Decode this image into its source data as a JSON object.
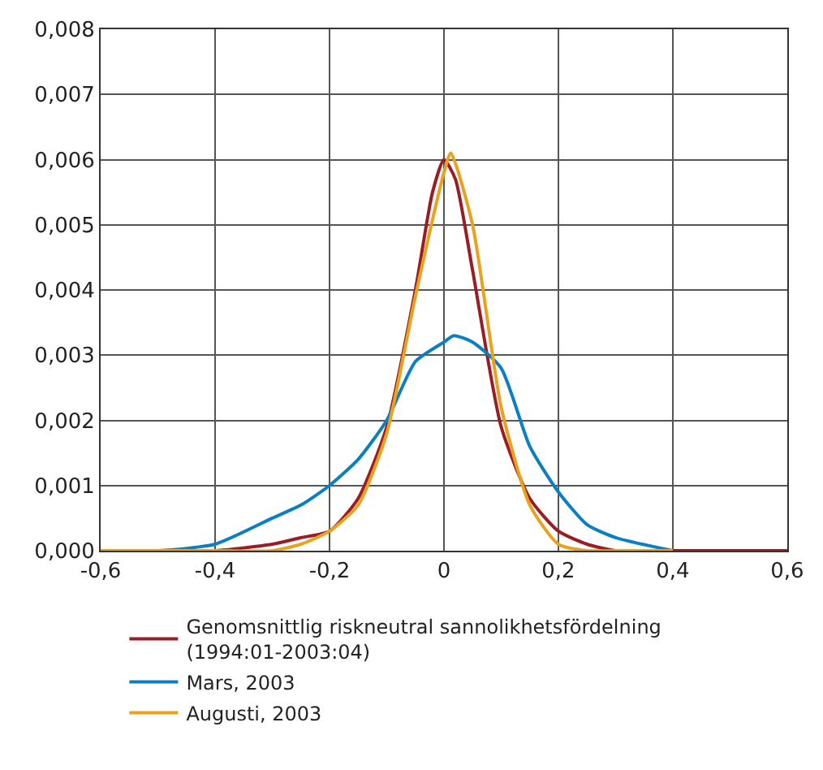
{
  "chart_data": {
    "type": "line",
    "xlim": [
      -0.6,
      0.6
    ],
    "xticks": [
      {
        "value": -0.6,
        "label": "-0,6"
      },
      {
        "value": -0.4,
        "label": "-0,4"
      },
      {
        "value": -0.2,
        "label": "-0,2"
      },
      0,
      {
        "value": 0.2,
        "label": "0,2"
      },
      {
        "value": 0.4,
        "label": "0,4"
      },
      {
        "value": 0.6,
        "label": "0,6"
      }
    ],
    "ylim": [
      0,
      0.008
    ],
    "yticks": [
      {
        "value": 0,
        "label": "0,000"
      },
      {
        "value": 0.001,
        "label": "0,001"
      },
      {
        "value": 0.002,
        "label": "0,002"
      },
      {
        "value": 0.003,
        "label": "0,003"
      },
      {
        "value": 0.004,
        "label": "0,004"
      },
      {
        "value": 0.005,
        "label": "0,005"
      },
      {
        "value": 0.006,
        "label": "0,006"
      },
      {
        "value": 0.007,
        "label": "0,007"
      },
      {
        "value": 0.008,
        "label": "0,008"
      }
    ],
    "grid": true,
    "legend": "bottom",
    "marker": "none",
    "line_style": "solid",
    "series": [
      {
        "name": "Genomsnittlig riskneutral sannolikhetsfördelning\n(1994:01-2003:04)",
        "color": "#9b1c24",
        "x": [
          -0.6,
          -0.5,
          -0.4,
          -0.3,
          -0.25,
          -0.2,
          -0.15,
          -0.1,
          -0.05,
          -0.02,
          0.0,
          0.02,
          0.05,
          0.1,
          0.15,
          0.2,
          0.25,
          0.3,
          0.4,
          0.5,
          0.6
        ],
        "values": [
          0,
          0,
          0,
          0.0001,
          0.0002,
          0.0003,
          0.0008,
          0.0019,
          0.004,
          0.0055,
          0.006,
          0.0057,
          0.0043,
          0.0019,
          0.0008,
          0.0003,
          0.0001,
          0,
          0,
          0,
          0
        ]
      },
      {
        "name": "Mars, 2003",
        "color": "#0a7fc4",
        "x": [
          -0.6,
          -0.5,
          -0.4,
          -0.3,
          -0.25,
          -0.2,
          -0.15,
          -0.1,
          -0.05,
          0.0,
          0.017,
          0.05,
          0.1,
          0.15,
          0.2,
          0.25,
          0.3,
          0.4
        ],
        "values": [
          0,
          0,
          0.0001,
          0.0005,
          0.0007,
          0.001,
          0.0014,
          0.002,
          0.0029,
          0.0032,
          0.0033,
          0.0032,
          0.0028,
          0.0016,
          0.0009,
          0.0004,
          0.0002,
          0
        ]
      },
      {
        "name": "Augusti, 2003",
        "color": "#e8a21e",
        "x": [
          -0.6,
          -0.4,
          -0.3,
          -0.25,
          -0.2,
          -0.15,
          -0.1,
          -0.05,
          0.0,
          0.012,
          0.05,
          0.1,
          0.15,
          0.2,
          0.25,
          0.3,
          0.4
        ],
        "values": [
          0,
          0,
          0,
          0.0001,
          0.0003,
          0.0007,
          0.0018,
          0.0039,
          0.0058,
          0.0061,
          0.005,
          0.0022,
          0.0007,
          0.0001,
          0,
          0,
          0
        ]
      }
    ]
  }
}
